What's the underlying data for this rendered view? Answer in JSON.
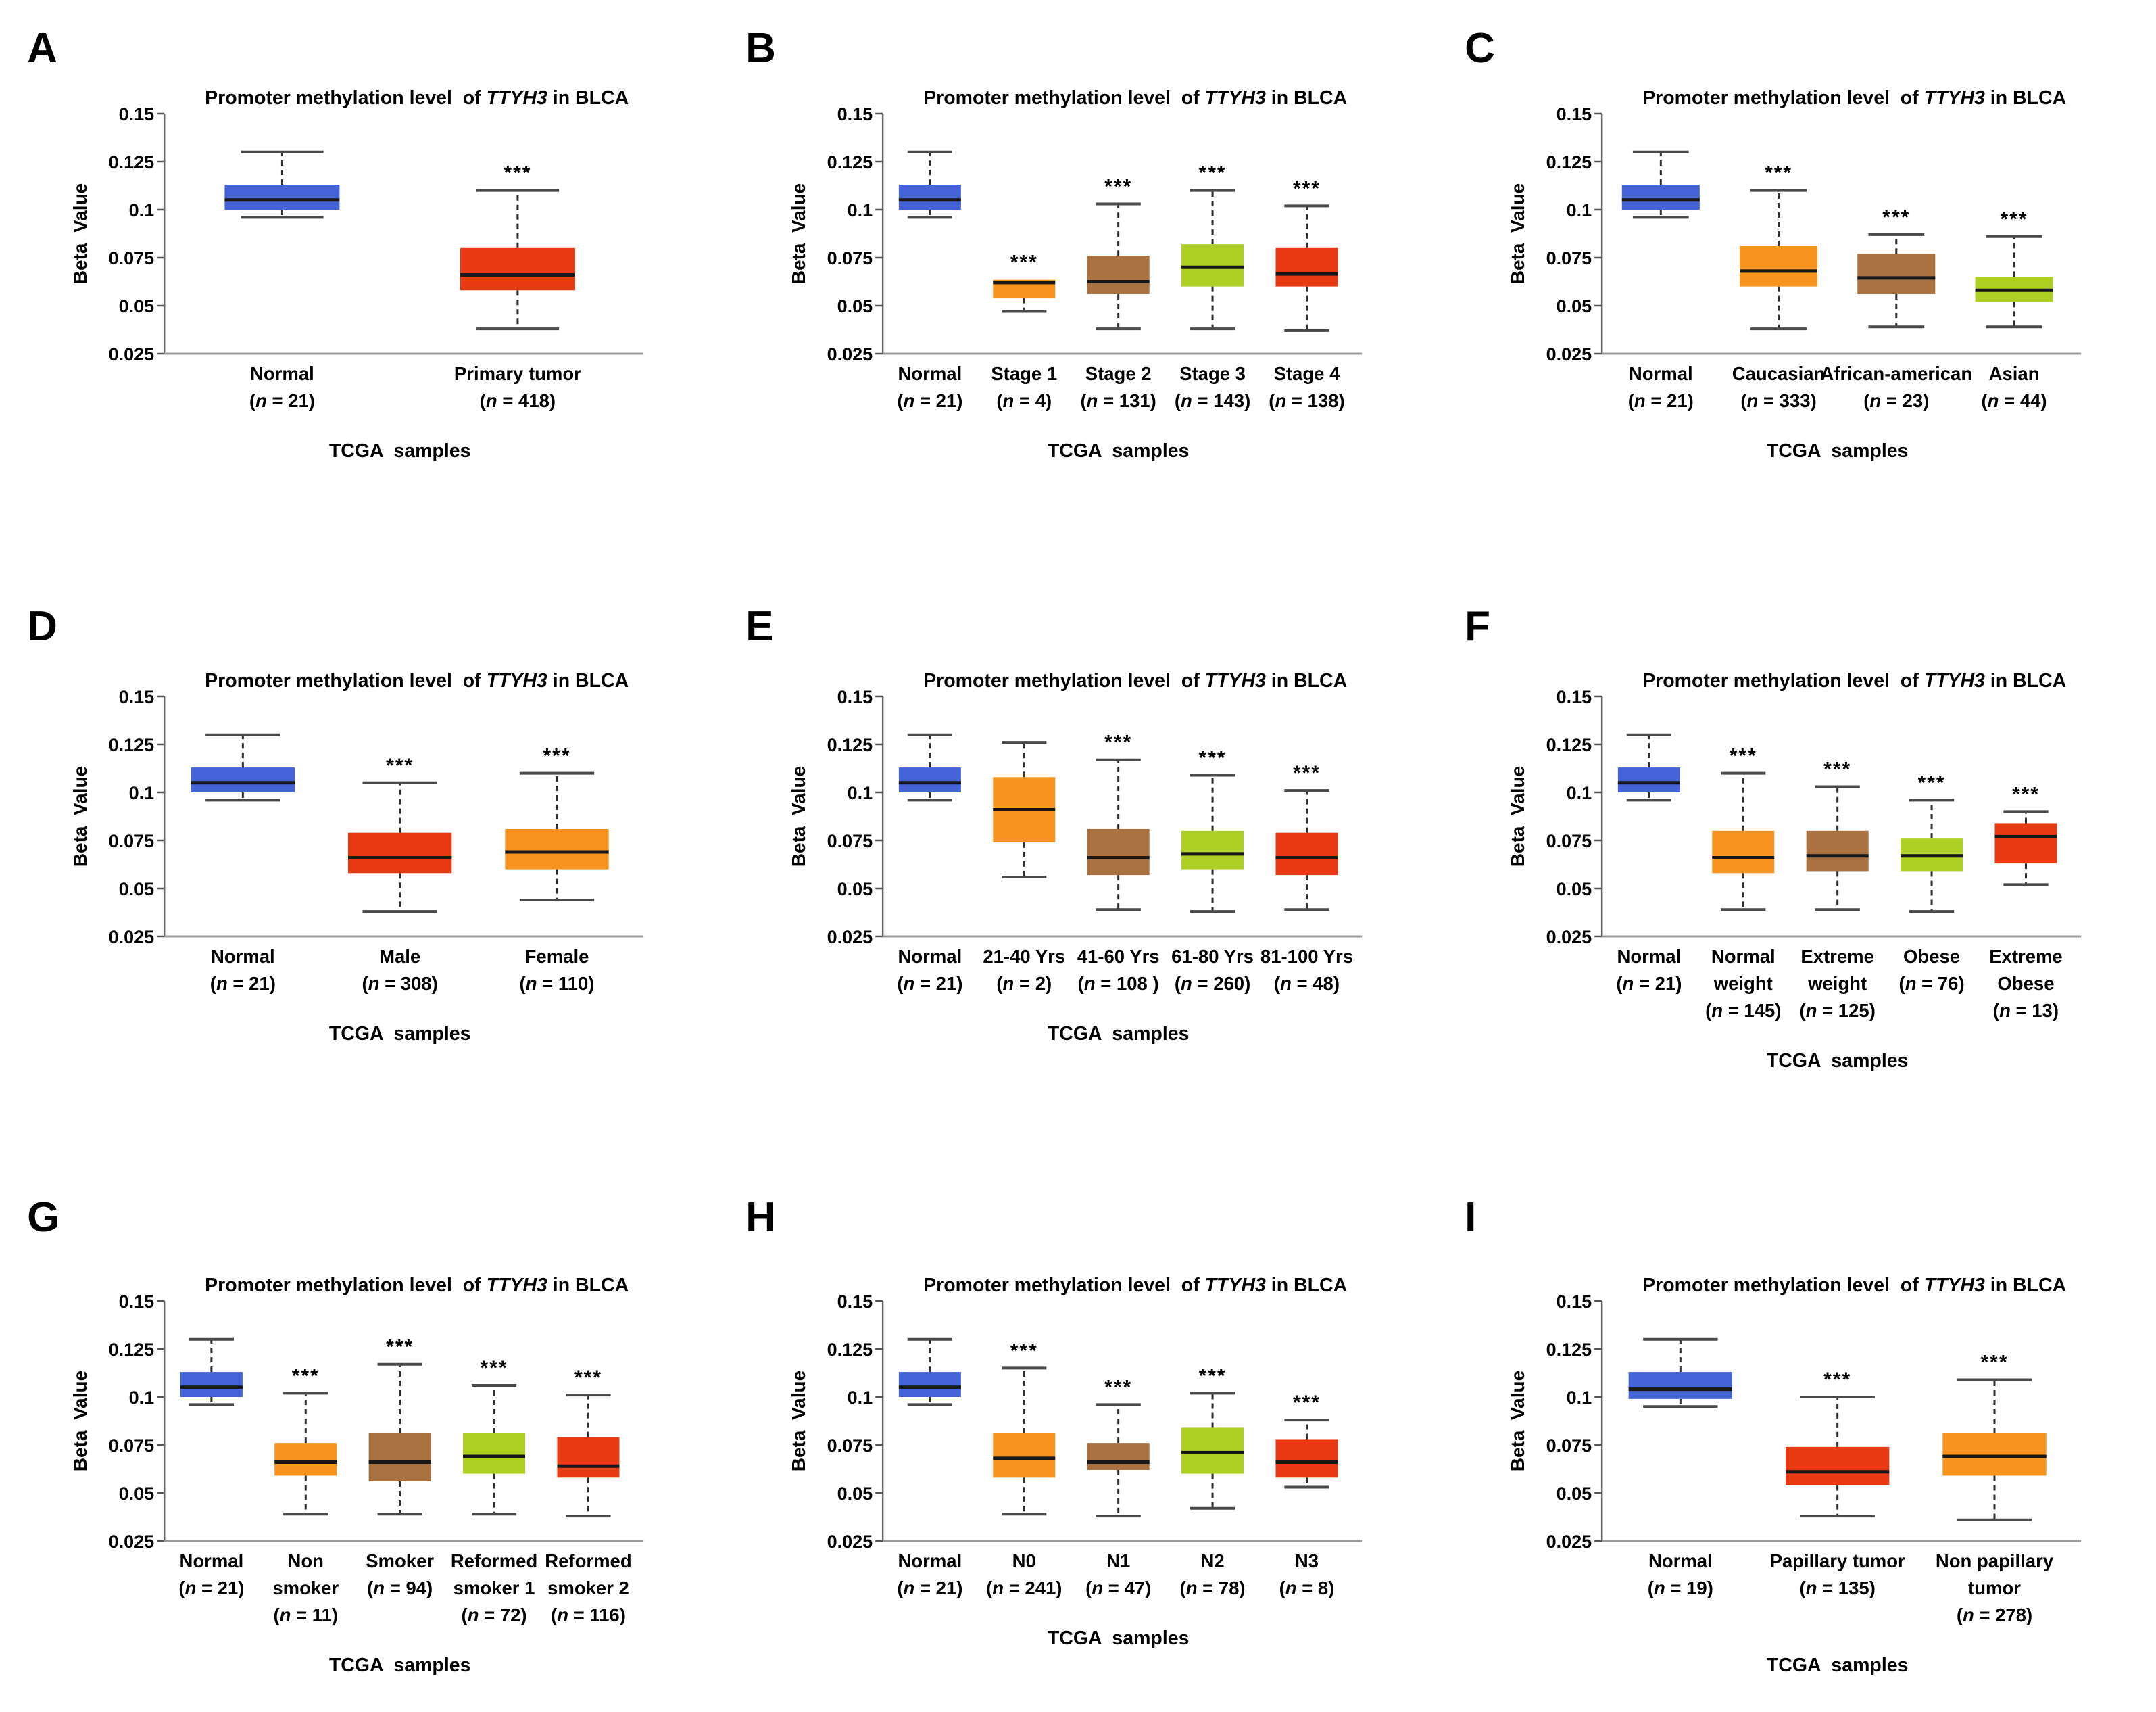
{
  "figure": {
    "title_prefix": "Promoter methylation level  of ",
    "title_gene": "TTYH3",
    "title_suffix": " in BLCA",
    "ylabel": "Beta  Value",
    "xlabel": "TCGA  samples",
    "sig_label": "***",
    "yticks": [
      "0.15",
      "0.125",
      "0.1",
      "0.075",
      "0.05",
      "0.025"
    ],
    "ylim": [
      0.025,
      0.15
    ],
    "colors": {
      "blue": "#4463d9",
      "red": "#e83a12",
      "orange": "#f7941f",
      "brown": "#a8713f",
      "green": "#aed024"
    },
    "axis_color": "#666666",
    "baseline_color": "#999999",
    "whisker_color": "#2e2e2e",
    "cap_color": "#4a4a4a",
    "median_color": "#171717"
  },
  "chart_data": [
    {
      "type": "box",
      "letter": "A",
      "groups": [
        {
          "label_lines": [
            "Normal",
            "(n = 21)"
          ],
          "color": "blue",
          "low": 0.096,
          "q1": 0.1,
          "median": 0.105,
          "q3": 0.113,
          "high": 0.13,
          "sig": ""
        },
        {
          "label_lines": [
            "Primary tumor",
            "(n = 418)"
          ],
          "color": "red",
          "low": 0.038,
          "q1": 0.058,
          "median": 0.066,
          "q3": 0.08,
          "high": 0.11,
          "sig": "***"
        }
      ]
    },
    {
      "type": "box",
      "letter": "B",
      "groups": [
        {
          "label_lines": [
            "Normal",
            "(n = 21)"
          ],
          "color": "blue",
          "low": 0.096,
          "q1": 0.1,
          "median": 0.105,
          "q3": 0.113,
          "high": 0.13,
          "sig": ""
        },
        {
          "label_lines": [
            "Stage 1",
            "(n = 4)"
          ],
          "color": "orange",
          "low": 0.047,
          "q1": 0.054,
          "median": 0.062,
          "q3": 0.0635,
          "high": 0.0635,
          "sig": "***"
        },
        {
          "label_lines": [
            "Stage 2",
            "(n = 131)"
          ],
          "color": "brown",
          "low": 0.038,
          "q1": 0.056,
          "median": 0.0625,
          "q3": 0.076,
          "high": 0.103,
          "sig": "***"
        },
        {
          "label_lines": [
            "Stage 3",
            "(n = 143)"
          ],
          "color": "green",
          "low": 0.038,
          "q1": 0.06,
          "median": 0.07,
          "q3": 0.082,
          "high": 0.11,
          "sig": "***"
        },
        {
          "label_lines": [
            "Stage 4",
            "(n = 138)"
          ],
          "color": "red",
          "low": 0.037,
          "q1": 0.06,
          "median": 0.0665,
          "q3": 0.08,
          "high": 0.102,
          "sig": "***"
        }
      ]
    },
    {
      "type": "box",
      "letter": "C",
      "groups": [
        {
          "label_lines": [
            "Normal",
            "(n = 21)"
          ],
          "color": "blue",
          "low": 0.096,
          "q1": 0.1,
          "median": 0.105,
          "q3": 0.113,
          "high": 0.13,
          "sig": ""
        },
        {
          "label_lines": [
            "Caucasian",
            "(n = 333)"
          ],
          "color": "orange",
          "low": 0.038,
          "q1": 0.06,
          "median": 0.068,
          "q3": 0.081,
          "high": 0.11,
          "sig": "***"
        },
        {
          "label_lines": [
            "African-american",
            "(n = 23)"
          ],
          "color": "brown",
          "low": 0.039,
          "q1": 0.056,
          "median": 0.0645,
          "q3": 0.077,
          "high": 0.087,
          "sig": "***"
        },
        {
          "label_lines": [
            "Asian",
            "(n = 44)"
          ],
          "color": "green",
          "low": 0.039,
          "q1": 0.052,
          "median": 0.058,
          "q3": 0.065,
          "high": 0.086,
          "sig": "***"
        }
      ]
    },
    {
      "type": "box",
      "letter": "D",
      "groups": [
        {
          "label_lines": [
            "Normal",
            "(n = 21)"
          ],
          "color": "blue",
          "low": 0.096,
          "q1": 0.1,
          "median": 0.105,
          "q3": 0.113,
          "high": 0.13,
          "sig": ""
        },
        {
          "label_lines": [
            "Male",
            "(n = 308)"
          ],
          "color": "red",
          "low": 0.038,
          "q1": 0.058,
          "median": 0.066,
          "q3": 0.079,
          "high": 0.105,
          "sig": "***"
        },
        {
          "label_lines": [
            "Female",
            "(n = 110)"
          ],
          "color": "orange",
          "low": 0.044,
          "q1": 0.06,
          "median": 0.069,
          "q3": 0.081,
          "high": 0.11,
          "sig": "***"
        }
      ]
    },
    {
      "type": "box",
      "letter": "E",
      "groups": [
        {
          "label_lines": [
            "Normal",
            "(n = 21)"
          ],
          "color": "blue",
          "low": 0.096,
          "q1": 0.1,
          "median": 0.105,
          "q3": 0.113,
          "high": 0.13,
          "sig": ""
        },
        {
          "label_lines": [
            "21-40 Yrs",
            "(n = 2)"
          ],
          "color": "orange",
          "low": 0.056,
          "q1": 0.074,
          "median": 0.091,
          "q3": 0.108,
          "high": 0.126,
          "sig": ""
        },
        {
          "label_lines": [
            "41-60 Yrs",
            "(n = 108 )"
          ],
          "color": "brown",
          "low": 0.039,
          "q1": 0.057,
          "median": 0.066,
          "q3": 0.081,
          "high": 0.117,
          "sig": "***"
        },
        {
          "label_lines": [
            "61-80 Yrs",
            "(n = 260)"
          ],
          "color": "green",
          "low": 0.038,
          "q1": 0.06,
          "median": 0.068,
          "q3": 0.08,
          "high": 0.109,
          "sig": "***"
        },
        {
          "label_lines": [
            "81-100 Yrs",
            "(n = 48)"
          ],
          "color": "red",
          "low": 0.039,
          "q1": 0.057,
          "median": 0.066,
          "q3": 0.079,
          "high": 0.101,
          "sig": "***"
        }
      ]
    },
    {
      "type": "box",
      "letter": "F",
      "groups": [
        {
          "label_lines": [
            "Normal",
            "(n = 21)"
          ],
          "color": "blue",
          "low": 0.096,
          "q1": 0.1,
          "median": 0.105,
          "q3": 0.113,
          "high": 0.13,
          "sig": ""
        },
        {
          "label_lines": [
            "Normal",
            "weight",
            "(n = 145)"
          ],
          "color": "orange",
          "low": 0.039,
          "q1": 0.058,
          "median": 0.066,
          "q3": 0.08,
          "high": 0.11,
          "sig": "***"
        },
        {
          "label_lines": [
            "Extreme",
            "weight",
            "(n = 125)"
          ],
          "color": "brown",
          "low": 0.039,
          "q1": 0.059,
          "median": 0.067,
          "q3": 0.08,
          "high": 0.103,
          "sig": "***"
        },
        {
          "label_lines": [
            "Obese",
            "(n = 76)"
          ],
          "color": "green",
          "low": 0.038,
          "q1": 0.059,
          "median": 0.067,
          "q3": 0.076,
          "high": 0.096,
          "sig": "***"
        },
        {
          "label_lines": [
            "Extreme",
            "Obese",
            "(n = 13)"
          ],
          "color": "red",
          "low": 0.052,
          "q1": 0.063,
          "median": 0.077,
          "q3": 0.084,
          "high": 0.09,
          "sig": "***"
        }
      ]
    },
    {
      "type": "box",
      "letter": "G",
      "groups": [
        {
          "label_lines": [
            "Normal",
            "(n = 21)"
          ],
          "color": "blue",
          "low": 0.096,
          "q1": 0.1,
          "median": 0.105,
          "q3": 0.113,
          "high": 0.13,
          "sig": ""
        },
        {
          "label_lines": [
            "Non",
            "smoker",
            "(n = 11)"
          ],
          "color": "orange",
          "low": 0.039,
          "q1": 0.059,
          "median": 0.066,
          "q3": 0.076,
          "high": 0.102,
          "sig": "***"
        },
        {
          "label_lines": [
            "Smoker",
            "(n = 94)"
          ],
          "color": "brown",
          "low": 0.039,
          "q1": 0.056,
          "median": 0.066,
          "q3": 0.081,
          "high": 0.117,
          "sig": "***"
        },
        {
          "label_lines": [
            "Reformed",
            "smoker 1",
            "(n = 72)"
          ],
          "color": "green",
          "low": 0.039,
          "q1": 0.06,
          "median": 0.069,
          "q3": 0.081,
          "high": 0.106,
          "sig": "***"
        },
        {
          "label_lines": [
            "Reformed",
            "smoker 2",
            "(n = 116)"
          ],
          "color": "red",
          "low": 0.038,
          "q1": 0.058,
          "median": 0.064,
          "q3": 0.079,
          "high": 0.101,
          "sig": "***"
        }
      ]
    },
    {
      "type": "box",
      "letter": "H",
      "groups": [
        {
          "label_lines": [
            "Normal",
            "(n = 21)"
          ],
          "color": "blue",
          "low": 0.096,
          "q1": 0.1,
          "median": 0.105,
          "q3": 0.113,
          "high": 0.13,
          "sig": ""
        },
        {
          "label_lines": [
            "N0",
            "(n = 241)"
          ],
          "color": "orange",
          "low": 0.039,
          "q1": 0.058,
          "median": 0.068,
          "q3": 0.081,
          "high": 0.115,
          "sig": "***"
        },
        {
          "label_lines": [
            "N1",
            "(n = 47)"
          ],
          "color": "brown",
          "low": 0.038,
          "q1": 0.062,
          "median": 0.066,
          "q3": 0.076,
          "high": 0.096,
          "sig": "***"
        },
        {
          "label_lines": [
            "N2",
            "(n = 78)"
          ],
          "color": "green",
          "low": 0.042,
          "q1": 0.06,
          "median": 0.071,
          "q3": 0.084,
          "high": 0.102,
          "sig": "***"
        },
        {
          "label_lines": [
            "N3",
            "(n = 8)"
          ],
          "color": "red",
          "low": 0.053,
          "q1": 0.058,
          "median": 0.066,
          "q3": 0.078,
          "high": 0.088,
          "sig": "***"
        }
      ]
    },
    {
      "type": "box",
      "letter": "I",
      "groups": [
        {
          "label_lines": [
            "Normal",
            "(n = 19)"
          ],
          "color": "blue",
          "low": 0.095,
          "q1": 0.099,
          "median": 0.104,
          "q3": 0.113,
          "high": 0.13,
          "sig": ""
        },
        {
          "label_lines": [
            "Papillary tumor",
            "(n = 135)"
          ],
          "color": "red",
          "low": 0.038,
          "q1": 0.054,
          "median": 0.061,
          "q3": 0.074,
          "high": 0.1,
          "sig": "***"
        },
        {
          "label_lines": [
            "Non papillary",
            "tumor",
            "(n = 278)"
          ],
          "color": "orange",
          "low": 0.036,
          "q1": 0.059,
          "median": 0.069,
          "q3": 0.081,
          "high": 0.109,
          "sig": "***"
        }
      ]
    }
  ]
}
